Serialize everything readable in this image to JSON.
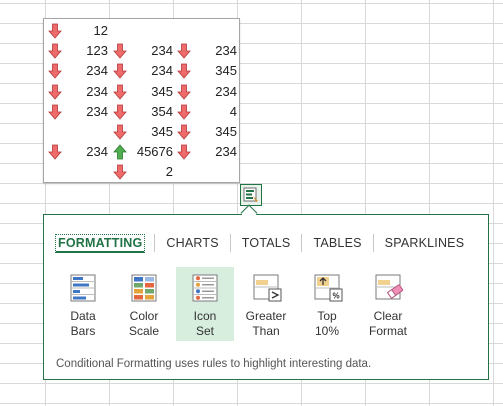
{
  "data_rows": [
    [
      "12",
      "",
      ""
    ],
    [
      "123",
      "234",
      "234"
    ],
    [
      "234",
      "234",
      "345"
    ],
    [
      "234",
      "345",
      "234"
    ],
    [
      "234",
      "354",
      "4"
    ],
    [
      "",
      "345",
      "345"
    ],
    [
      "234",
      "45676",
      "234"
    ],
    [
      "",
      "2",
      ""
    ]
  ],
  "arrows": [
    [
      "down",
      "",
      ""
    ],
    [
      "down",
      "down",
      "down"
    ],
    [
      "down",
      "down",
      "down"
    ],
    [
      "down",
      "down",
      "down"
    ],
    [
      "down",
      "down",
      "down"
    ],
    [
      "",
      "down",
      "down"
    ],
    [
      "down",
      "up",
      "down"
    ],
    [
      "",
      "down",
      ""
    ]
  ],
  "colors": {
    "accent": "#217346",
    "down_arrow": "#ef6b6b",
    "up_arrow": "#4fae4f",
    "selected_bg": "#d7eedf"
  },
  "quick_analysis": {
    "tabs": [
      {
        "label": "FORMATTING",
        "active": true
      },
      {
        "label": "CHARTS",
        "active": false
      },
      {
        "label": "TOTALS",
        "active": false
      },
      {
        "label": "TABLES",
        "active": false
      },
      {
        "label": "SPARKLINES",
        "active": false
      }
    ],
    "options": [
      {
        "label": "Data\nBars",
        "icon": "data-bars-icon",
        "selected": false
      },
      {
        "label": "Color\nScale",
        "icon": "color-scale-icon",
        "selected": false
      },
      {
        "label": "Icon\nSet",
        "icon": "icon-set-icon",
        "selected": true
      },
      {
        "label": "Greater\nThan",
        "icon": "greater-than-icon",
        "selected": false
      },
      {
        "label": "Top\n10%",
        "icon": "top-10-percent-icon",
        "selected": false
      },
      {
        "label": "Clear\nFormat",
        "icon": "clear-format-icon",
        "selected": false
      }
    ],
    "description": "Conditional Formatting uses rules to highlight interesting data."
  }
}
